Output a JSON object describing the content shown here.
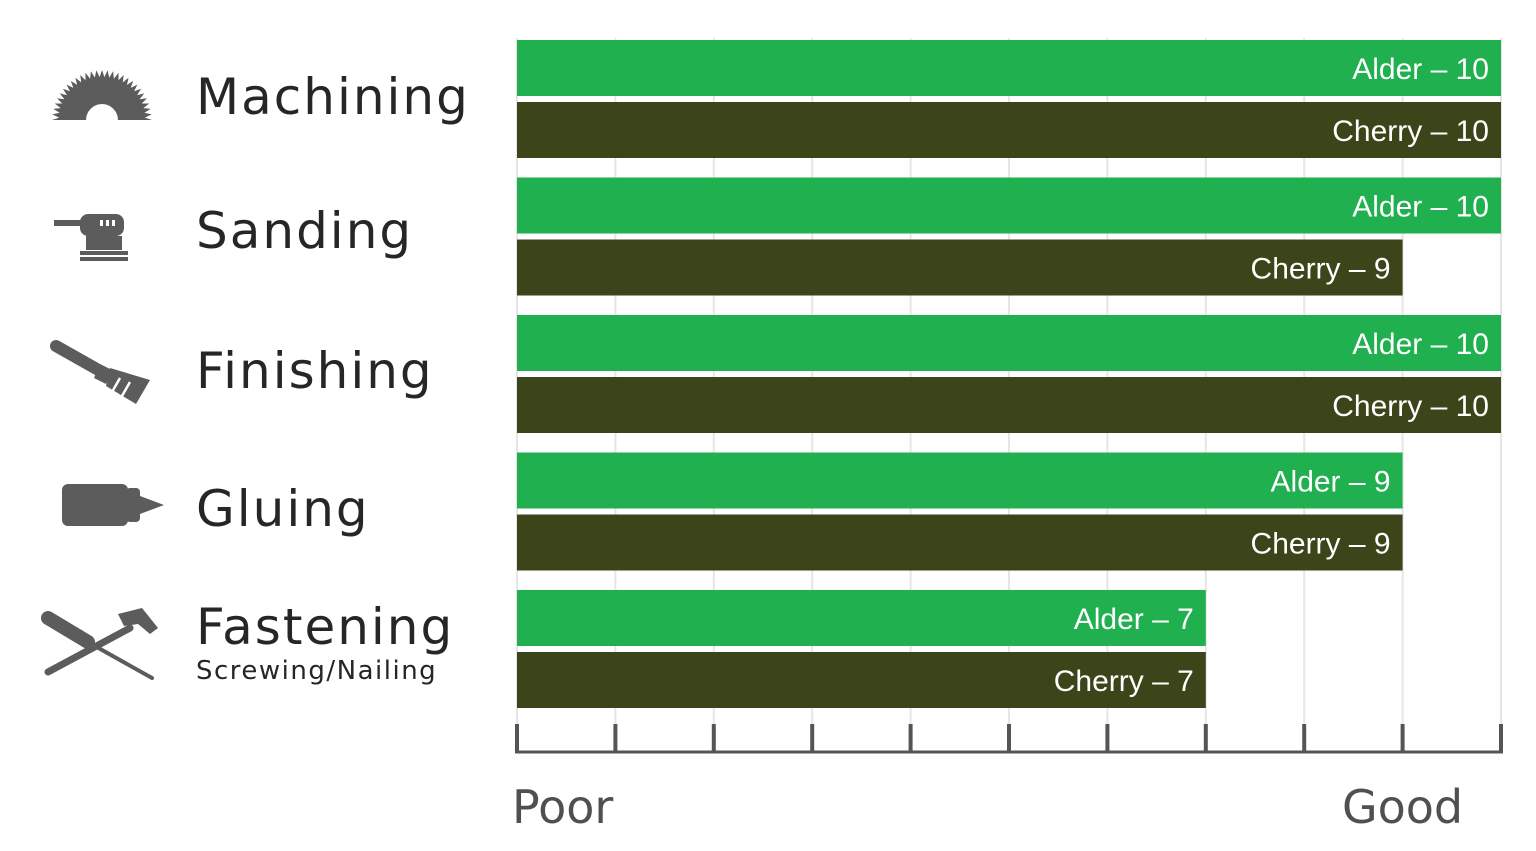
{
  "chart_data": {
    "type": "bar",
    "orientation": "horizontal",
    "categories": [
      "Machining",
      "Sanding",
      "Finishing",
      "Gluing",
      "Fastening"
    ],
    "category_subtitles": {
      "Fastening": "Screwing/Nailing"
    },
    "category_icons": [
      "saw-blade-icon",
      "orbital-sander-icon",
      "paintbrush-icon",
      "glue-bottle-icon",
      "screwdriver-hammer-icon"
    ],
    "series": [
      {
        "name": "Alder",
        "values": [
          10,
          10,
          10,
          9,
          7
        ],
        "color": "#21b04f"
      },
      {
        "name": "Cherry",
        "values": [
          10,
          9,
          10,
          9,
          7
        ],
        "color": "#3c451a"
      }
    ],
    "bar_labels": [
      [
        "Alder – 10",
        "Cherry – 10"
      ],
      [
        "Alder – 10",
        "Cherry – 9"
      ],
      [
        "Alder – 10",
        "Cherry – 10"
      ],
      [
        "Alder – 9",
        "Cherry – 9"
      ],
      [
        "Alder – 7",
        "Cherry – 7"
      ]
    ],
    "xlim": [
      0,
      10
    ],
    "x_ticks": [
      0,
      1,
      2,
      3,
      4,
      5,
      6,
      7,
      8,
      9,
      10
    ],
    "x_end_labels": {
      "low": "Poor",
      "high": "Good"
    },
    "grid": true,
    "title": "",
    "xlabel": "",
    "ylabel": ""
  }
}
